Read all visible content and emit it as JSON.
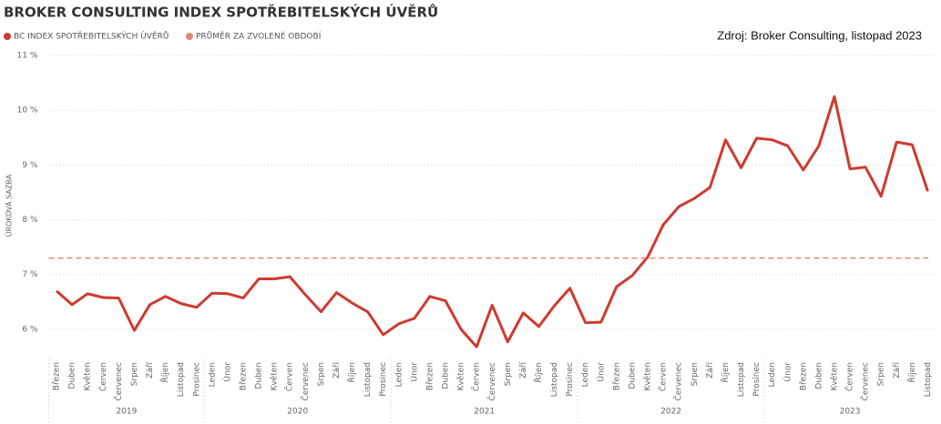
{
  "chart_data": {
    "type": "line",
    "title": "BROKER CONSULTING INDEX SPOTŘEBITELSKÝCH ÚVĚRŮ",
    "source": "Zdroj: Broker Consulting, listopad 2023",
    "y_label": "ÚROKOVÁ SAZBA",
    "groups": [
      {
        "label": "2019",
        "months": [
          "Březen",
          "Duben",
          "Květen",
          "Červen",
          "Červenec",
          "Srpen",
          "Září",
          "Říjen",
          "Listopad",
          "Prosinec"
        ]
      },
      {
        "label": "2020",
        "months": [
          "Leden",
          "Únor",
          "Březen",
          "Duben",
          "Květen",
          "Červen",
          "Červenec",
          "Srpen",
          "Září",
          "Říjen",
          "Listopad",
          "Prosinec"
        ]
      },
      {
        "label": "2021",
        "months": [
          "Leden",
          "Únor",
          "Březen",
          "Duben",
          "Květen",
          "Červen",
          "Červenec",
          "Srpen",
          "Září",
          "Říjen",
          "Listopad",
          "Prosinec"
        ]
      },
      {
        "label": "2022",
        "months": [
          "Leden",
          "Únor",
          "Březen",
          "Duben",
          "Květen",
          "Červen",
          "Červenec",
          "Srpen",
          "Září",
          "Říjen",
          "Listopad",
          "Prosinec"
        ]
      },
      {
        "label": "2023",
        "months": [
          "Leden",
          "Únor",
          "Březen",
          "Duben",
          "Květen",
          "Červen",
          "Červenec",
          "Srpen",
          "Září",
          "Říjen",
          "Listopad"
        ]
      }
    ],
    "series": [
      {
        "name": "BC INDEX SPOTŘEBITELSKÝCH ÚVĚRŮ",
        "color": "#d03a2f",
        "values": [
          6.7,
          6.45,
          6.65,
          6.58,
          6.57,
          5.98,
          6.45,
          6.6,
          6.47,
          6.4,
          6.66,
          6.65,
          6.57,
          6.92,
          6.92,
          6.96,
          6.63,
          6.32,
          6.67,
          6.48,
          6.32,
          5.9,
          6.1,
          6.2,
          6.6,
          6.52,
          6.0,
          5.68,
          6.44,
          5.77,
          6.3,
          6.05,
          6.43,
          6.75,
          6.12,
          6.13,
          6.78,
          6.98,
          7.32,
          7.91,
          8.24,
          8.39,
          8.59,
          9.46,
          8.95,
          9.49,
          9.46,
          9.35,
          8.91,
          9.35,
          10.25,
          8.93,
          8.96,
          8.43,
          9.42,
          9.37,
          8.52
        ]
      }
    ],
    "reference_line": {
      "name": "PRŮMĚR ZA ZVOLENÉ OBDOBÍ",
      "color": "#e0877c",
      "value": 7.3
    },
    "ylim": [
      5.5,
      11
    ],
    "yticks": [
      {
        "value": 6,
        "label": "6 %"
      },
      {
        "value": 7,
        "label": "7 %"
      },
      {
        "value": 8,
        "label": "8 %"
      },
      {
        "value": 9,
        "label": "9 %"
      },
      {
        "value": 10,
        "label": "10 %"
      },
      {
        "value": 11,
        "label": "11 %"
      }
    ],
    "grid": true
  }
}
